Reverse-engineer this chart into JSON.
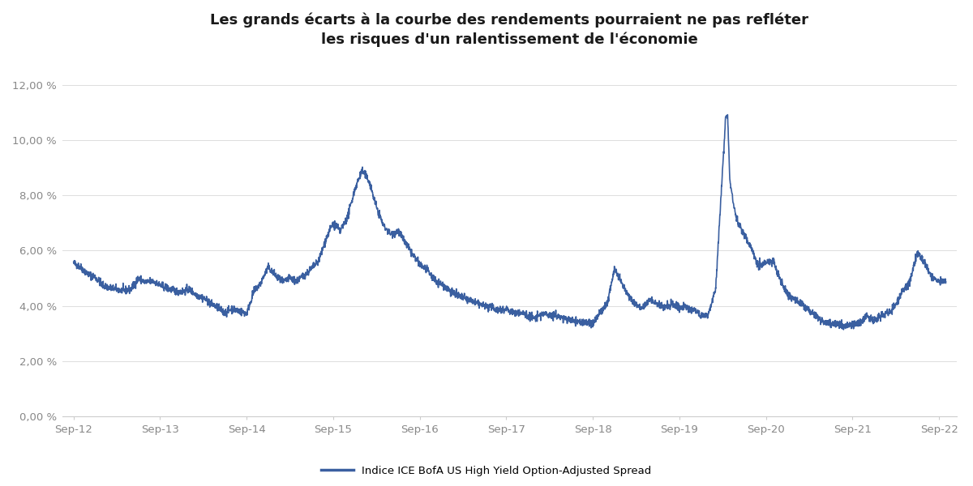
{
  "title": "Les grands écarts à la courbe des rendements pourraient ne pas refléter\nles risques d'un ralentissement de l'économie",
  "line_color": "#3a5fa0",
  "line_width": 1.2,
  "background_color": "#ffffff",
  "ylabel_ticks": [
    "0,00 %",
    "2,00 %",
    "4,00 %",
    "6,00 %",
    "8,00 %",
    "10,00 %",
    "12,00 %"
  ],
  "ytick_vals": [
    0.0,
    2.0,
    4.0,
    6.0,
    8.0,
    10.0,
    12.0
  ],
  "xtick_labels": [
    "Sep-12",
    "Sep-13",
    "Sep-14",
    "Sep-15",
    "Sep-16",
    "Sep-17",
    "Sep-18",
    "Sep-19",
    "Sep-20",
    "Sep-21",
    "Sep-22"
  ],
  "legend_label": "Indice ICE BofA US High Yield Option-Adjusted Spread",
  "ylim": [
    0.0,
    13.0
  ],
  "grid_color": "#dddddd",
  "tick_color": "#888888",
  "spine_color": "#cccccc",
  "title_fontsize": 13,
  "tick_fontsize": 9.5,
  "legend_fontsize": 9.5,
  "font_family": "Arial"
}
